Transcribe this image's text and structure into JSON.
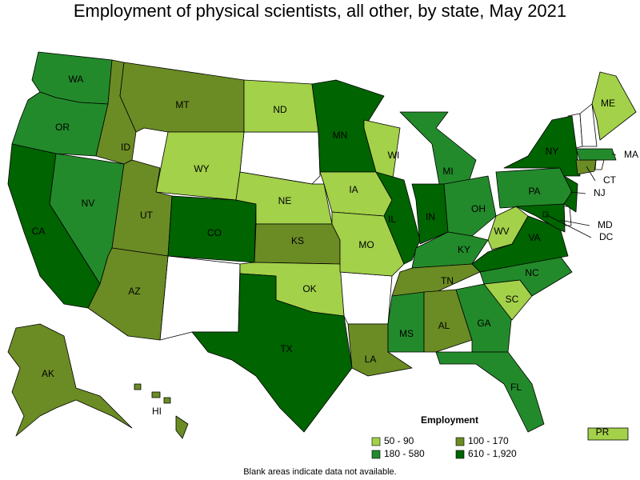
{
  "title": "Employment of physical scientists, all other, by state, May 2021",
  "legend": {
    "title": "Employment",
    "items": [
      {
        "label": "50 - 90",
        "color": "#a3d14a"
      },
      {
        "label": "100 - 170",
        "color": "#6b8c24"
      },
      {
        "label": "180 - 580",
        "color": "#238a2b"
      },
      {
        "label": "610 - 1,920",
        "color": "#006400"
      }
    ]
  },
  "states": [
    {
      "abbr": "WA",
      "range": "180 - 580"
    },
    {
      "abbr": "OR",
      "range": "180 - 580"
    },
    {
      "abbr": "CA",
      "range": "610 - 1,920"
    },
    {
      "abbr": "NV",
      "range": "180 - 580"
    },
    {
      "abbr": "ID",
      "range": "100 - 170"
    },
    {
      "abbr": "MT",
      "range": "100 - 170"
    },
    {
      "abbr": "WY",
      "range": "50 - 90"
    },
    {
      "abbr": "UT",
      "range": "100 - 170"
    },
    {
      "abbr": "AZ",
      "range": "100 - 170"
    },
    {
      "abbr": "CO",
      "range": "610 - 1,920"
    },
    {
      "abbr": "ND",
      "range": "50 - 90"
    },
    {
      "abbr": "NE",
      "range": "50 - 90"
    },
    {
      "abbr": "KS",
      "range": "100 - 170"
    },
    {
      "abbr": "OK",
      "range": "50 - 90"
    },
    {
      "abbr": "TX",
      "range": "610 - 1,920"
    },
    {
      "abbr": "MN",
      "range": "610 - 1,920"
    },
    {
      "abbr": "IA",
      "range": "50 - 90"
    },
    {
      "abbr": "MO",
      "range": "50 - 90"
    },
    {
      "abbr": "LA",
      "range": "100 - 170"
    },
    {
      "abbr": "WI",
      "range": "50 - 90"
    },
    {
      "abbr": "IL",
      "range": "610 - 1,920"
    },
    {
      "abbr": "MI",
      "range": "180 - 580"
    },
    {
      "abbr": "IN",
      "range": "610 - 1,920"
    },
    {
      "abbr": "OH",
      "range": "180 - 580"
    },
    {
      "abbr": "KY",
      "range": "180 - 580"
    },
    {
      "abbr": "TN",
      "range": "100 - 170"
    },
    {
      "abbr": "MS",
      "range": "180 - 580"
    },
    {
      "abbr": "AL",
      "range": "100 - 170"
    },
    {
      "abbr": "GA",
      "range": "180 - 580"
    },
    {
      "abbr": "FL",
      "range": "180 - 580"
    },
    {
      "abbr": "SC",
      "range": "50 - 90"
    },
    {
      "abbr": "NC",
      "range": "180 - 580"
    },
    {
      "abbr": "VA",
      "range": "610 - 1,920"
    },
    {
      "abbr": "WV",
      "range": "50 - 90"
    },
    {
      "abbr": "PA",
      "range": "180 - 580"
    },
    {
      "abbr": "NY",
      "range": "610 - 1,920"
    },
    {
      "abbr": "NJ",
      "range": "610 - 1,920"
    },
    {
      "abbr": "MD",
      "range": "610 - 1,920"
    },
    {
      "abbr": "DC",
      "range": "610 - 1,920"
    },
    {
      "abbr": "CT",
      "range": "100 - 170"
    },
    {
      "abbr": "MA",
      "range": "180 - 580"
    },
    {
      "abbr": "ME",
      "range": "50 - 90"
    },
    {
      "abbr": "AK",
      "range": "100 - 170"
    },
    {
      "abbr": "HI",
      "range": "100 - 170"
    },
    {
      "abbr": "PR",
      "range": "50 - 90"
    }
  ],
  "footnote": "Blank areas indicate data not available."
}
